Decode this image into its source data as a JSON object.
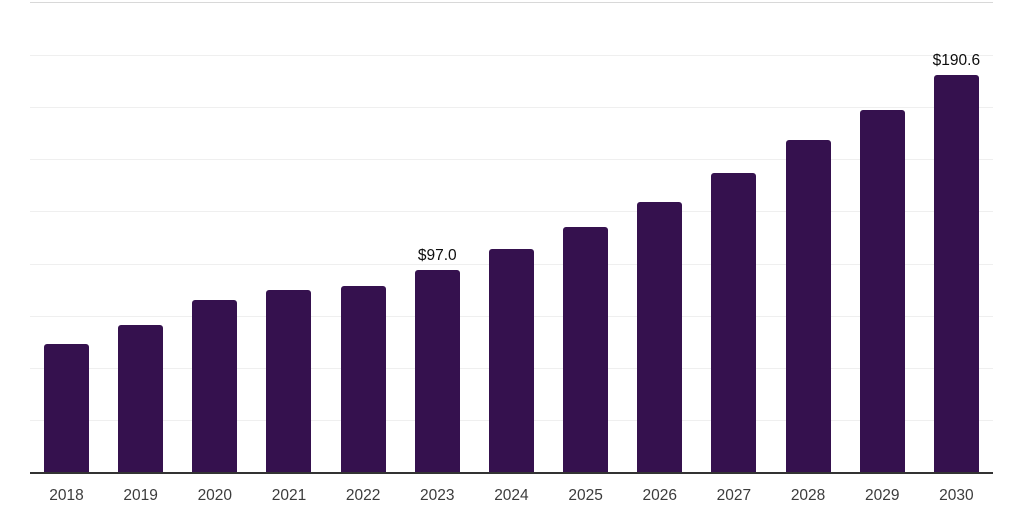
{
  "chart_data": {
    "type": "bar",
    "title": "",
    "xlabel": "",
    "ylabel": "",
    "categories": [
      "2018",
      "2019",
      "2020",
      "2021",
      "2022",
      "2023",
      "2024",
      "2025",
      "2026",
      "2027",
      "2028",
      "2029",
      "2030"
    ],
    "values": [
      61.5,
      70.6,
      82.5,
      87.4,
      89.3,
      97.0,
      107.1,
      117.8,
      129.4,
      143.3,
      159.1,
      173.8,
      190.6
    ],
    "data_labels": [
      {
        "category": "2023",
        "text": "$97.0"
      },
      {
        "category": "2030",
        "text": "$190.6"
      }
    ],
    "ylim": [
      0,
      225
    ],
    "grid_interval": 25,
    "grid": "horizontal-only",
    "y_tick_labels_visible": false,
    "legend": "none",
    "colors": {
      "bar": "#35114E",
      "gridline": "#efefef",
      "plot_top_border": "#d8d8d8",
      "x_axis_line": "#333333",
      "x_tick_label": "#3c3c3c",
      "data_label": "#0d0d0d",
      "background": "#ffffff"
    }
  }
}
